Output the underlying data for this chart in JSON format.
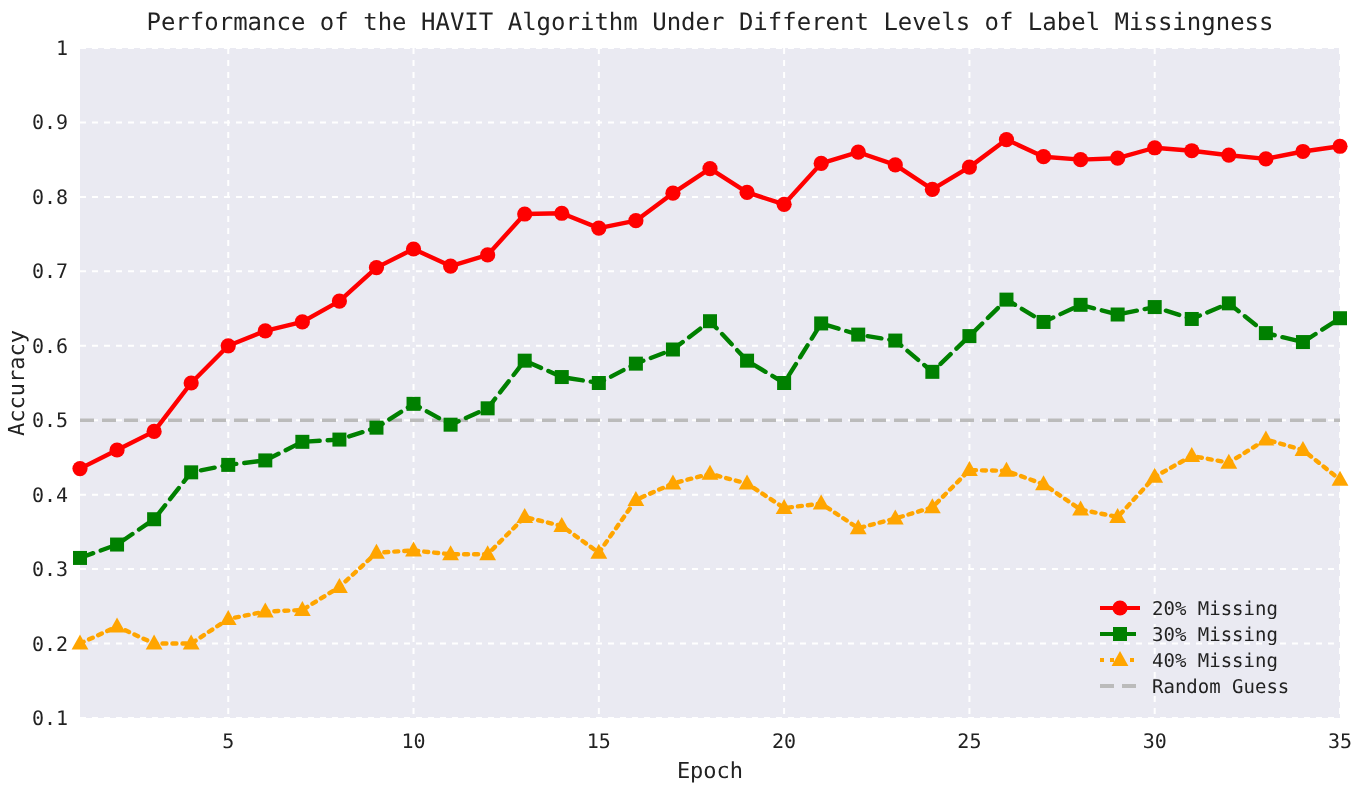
{
  "chart_data": {
    "type": "line",
    "title": "Performance of the HAVIT Algorithm Under Different Levels of Label Missingness",
    "xlabel": "Epoch",
    "ylabel": "Accuracy",
    "x": [
      1,
      2,
      3,
      4,
      5,
      6,
      7,
      8,
      9,
      10,
      11,
      12,
      13,
      14,
      15,
      16,
      17,
      18,
      19,
      20,
      21,
      22,
      23,
      24,
      25,
      26,
      27,
      28,
      29,
      30,
      31,
      32,
      33,
      34,
      35
    ],
    "series": [
      {
        "name": "20% Missing",
        "color": "#ff0000",
        "marker": "circle",
        "line_style": "solid",
        "values": [
          0.435,
          0.46,
          0.485,
          0.55,
          0.6,
          0.62,
          0.632,
          0.66,
          0.705,
          0.73,
          0.707,
          0.722,
          0.777,
          0.778,
          0.758,
          0.768,
          0.805,
          0.838,
          0.806,
          0.79,
          0.845,
          0.86,
          0.843,
          0.81,
          0.84,
          0.877,
          0.854,
          0.85,
          0.852,
          0.866,
          0.862,
          0.856,
          0.851,
          0.861,
          0.868
        ]
      },
      {
        "name": "30% Missing",
        "color": "#008000",
        "marker": "square",
        "line_style": "dashed",
        "values": [
          0.315,
          0.333,
          0.367,
          0.43,
          0.44,
          0.446,
          0.471,
          0.474,
          0.49,
          0.522,
          0.494,
          0.516,
          0.58,
          0.558,
          0.55,
          0.576,
          0.595,
          0.633,
          0.58,
          0.55,
          0.63,
          0.615,
          0.607,
          0.565,
          0.613,
          0.662,
          0.632,
          0.655,
          0.642,
          0.652,
          0.636,
          0.657,
          0.617,
          0.605,
          0.637
        ]
      },
      {
        "name": "40% Missing",
        "color": "#ffa500",
        "marker": "triangle",
        "line_style": "dotted",
        "values": [
          0.2,
          0.223,
          0.2,
          0.2,
          0.233,
          0.243,
          0.245,
          0.276,
          0.322,
          0.325,
          0.32,
          0.32,
          0.37,
          0.358,
          0.322,
          0.393,
          0.415,
          0.428,
          0.415,
          0.382,
          0.388,
          0.355,
          0.368,
          0.383,
          0.433,
          0.432,
          0.414,
          0.38,
          0.37,
          0.424,
          0.452,
          0.443,
          0.474,
          0.46,
          0.42
        ]
      }
    ],
    "ref_lines": [
      {
        "axis": "y",
        "value": 0.5,
        "label": "Random Guess",
        "color": "#bbbbbb",
        "line_style": "dashed"
      }
    ],
    "xlim": [
      1,
      35
    ],
    "xticks": [
      5,
      10,
      15,
      20,
      25,
      30,
      35
    ],
    "ylim": [
      0.1,
      1.0
    ],
    "yticks": [
      0.1,
      0.2,
      0.3,
      0.4,
      0.5,
      0.6,
      0.7,
      0.8,
      0.9,
      1
    ],
    "grid": true,
    "legend": "bottom right"
  }
}
